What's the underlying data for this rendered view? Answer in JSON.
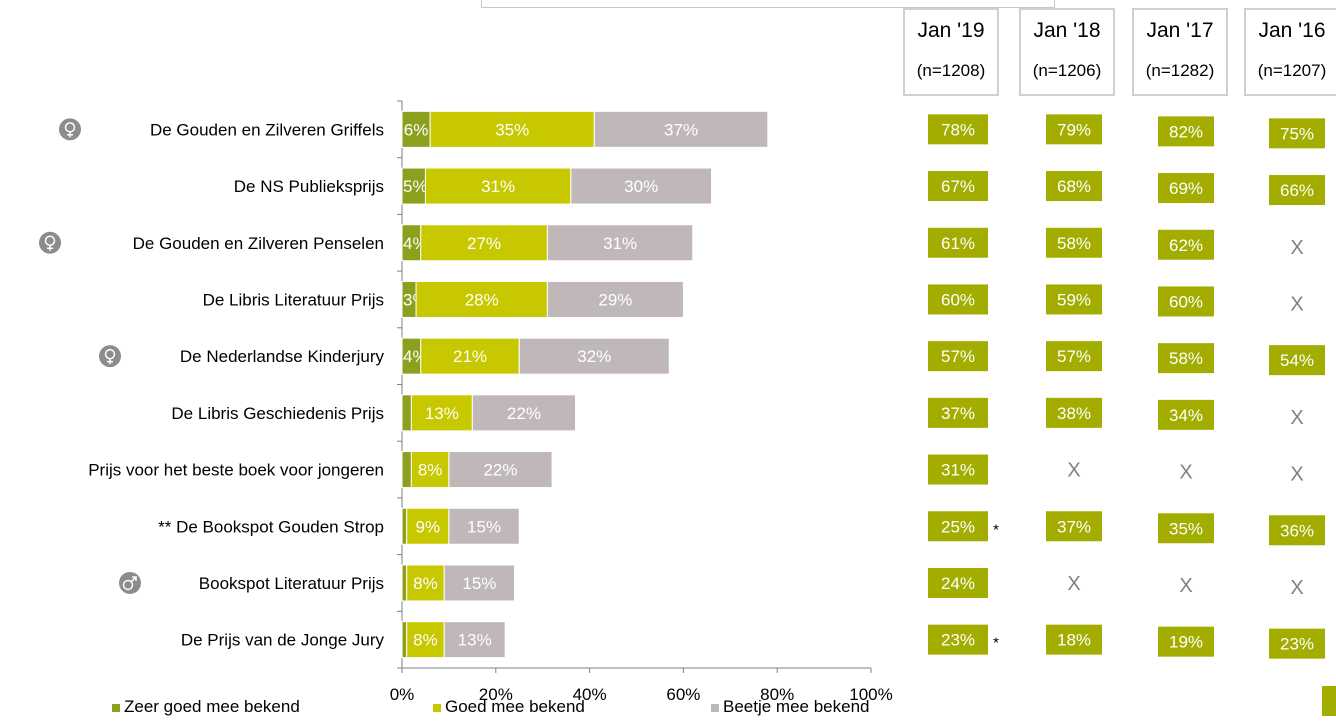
{
  "chart_data": {
    "type": "bar",
    "orientation": "horizontal",
    "stacked": true,
    "categories": [
      "De Gouden en Zilveren Griffels",
      "De NS Publieksprijs",
      "De Gouden en Zilveren Penselen",
      "De Libris Literatuur Prijs",
      "De Nederlandse Kinderjury",
      "De Libris Geschiedenis Prijs",
      "Prijs voor het beste boek voor jongeren",
      "** De Bookspot Gouden Strop",
      "Bookspot Literatuur Prijs",
      "De Prijs van de Jonge Jury"
    ],
    "category_icons": [
      "female-icon",
      "",
      "female-icon",
      "",
      "female-icon",
      "",
      "",
      "",
      "male-icon",
      ""
    ],
    "series": [
      {
        "name": "Zeer goed mee bekend",
        "color": "#8ca01e",
        "values": [
          6,
          5,
          4,
          3,
          4,
          2,
          2,
          1,
          1,
          1
        ],
        "labels": [
          "6%",
          "5%",
          "4%",
          "3%",
          "4%",
          "",
          "",
          "",
          "",
          ""
        ]
      },
      {
        "name": "Goed mee bekend",
        "color": "#c8c800",
        "values": [
          35,
          31,
          27,
          28,
          21,
          13,
          8,
          9,
          8,
          8
        ],
        "labels": [
          "35%",
          "31%",
          "27%",
          "28%",
          "21%",
          "13%",
          "8%",
          "9%",
          "8%",
          "8%"
        ]
      },
      {
        "name": "Beetje mee bekend",
        "color": "#c0b8b8",
        "values": [
          37,
          30,
          31,
          29,
          32,
          22,
          22,
          15,
          15,
          13
        ],
        "labels": [
          "37%",
          "30%",
          "31%",
          "29%",
          "32%",
          "22%",
          "22%",
          "15%",
          "15%",
          "13%"
        ]
      }
    ],
    "xlim": [
      0,
      100
    ],
    "x_ticks": [
      "0%",
      "20%",
      "40%",
      "60%",
      "80%",
      "100%"
    ],
    "legend_position": "bottom",
    "table": {
      "columns": [
        {
          "month": "Jan '19",
          "n": "(n=1208)"
        },
        {
          "month": "Jan '18",
          "n": "(n=1206)"
        },
        {
          "month": "Jan '17",
          "n": "(n=1282)"
        },
        {
          "month": "Jan '16",
          "n": "(n=1207)"
        }
      ],
      "rows": [
        [
          "78%",
          "79%",
          "82%",
          "75%"
        ],
        [
          "67%",
          "68%",
          "69%",
          "66%"
        ],
        [
          "61%",
          "58%",
          "62%",
          "X"
        ],
        [
          "60%",
          "59%",
          "60%",
          "X"
        ],
        [
          "57%",
          "57%",
          "58%",
          "54%"
        ],
        [
          "37%",
          "38%",
          "34%",
          "X"
        ],
        [
          "31%",
          "X",
          "X",
          "X"
        ],
        [
          "25%",
          "37%",
          "35%",
          "36%"
        ],
        [
          "24%",
          "X",
          "X",
          "X"
        ],
        [
          "23%",
          "18%",
          "19%",
          "23%"
        ]
      ],
      "marks": [
        "",
        "",
        "",
        "",
        "",
        "",
        "",
        "*",
        "",
        "*"
      ],
      "cell_color": "#a3ad00",
      "missing_color": "#808080"
    }
  }
}
